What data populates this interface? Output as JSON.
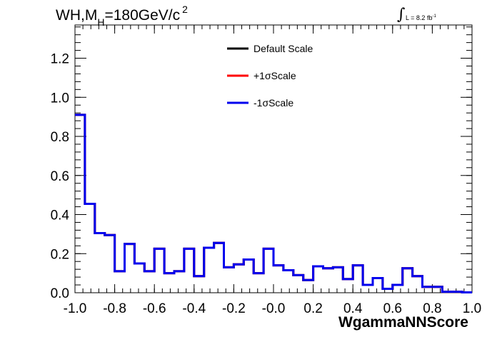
{
  "title": {
    "text_main": "WH,M",
    "text_sub": "H",
    "text_rest": "=180GeV/c",
    "text_sup": "2"
  },
  "lumi": {
    "integral": "∫",
    "text": "L = 8.2 fb",
    "sup": "-1"
  },
  "chart_data": {
    "type": "line",
    "drawstyle": "steps-histogram",
    "xlabel": "WgammaNNScore",
    "ylabel": "",
    "xlim": [
      -1.0,
      1.0
    ],
    "ylim": [
      0.0,
      1.37
    ],
    "xticks": [
      "-1.0",
      "-0.8",
      "-0.6",
      "-0.4",
      "-0.2",
      "-0.0",
      "0.2",
      "0.4",
      "0.6",
      "0.8",
      "1.0"
    ],
    "yticks": [
      "0.0",
      "0.2",
      "0.4",
      "0.6",
      "0.8",
      "1.0",
      "1.2"
    ],
    "bin_edges": [
      -1.0,
      -0.95,
      -0.9,
      -0.85,
      -0.8,
      -0.75,
      -0.7,
      -0.65,
      -0.6,
      -0.55,
      -0.5,
      -0.45,
      -0.4,
      -0.35,
      -0.3,
      -0.25,
      -0.2,
      -0.15,
      -0.1,
      -0.05,
      0.0,
      0.05,
      0.1,
      0.15,
      0.2,
      0.25,
      0.3,
      0.35,
      0.4,
      0.45,
      0.5,
      0.55,
      0.6,
      0.65,
      0.7,
      0.75,
      0.8,
      0.85,
      0.9,
      0.95,
      1.0
    ],
    "legend_position": "top-center",
    "grid": false,
    "series": [
      {
        "name": "Default Scale",
        "color": "#000000",
        "values": [
          0.91,
          0.455,
          0.305,
          0.295,
          0.11,
          0.25,
          0.15,
          0.11,
          0.225,
          0.1,
          0.11,
          0.225,
          0.085,
          0.23,
          0.255,
          0.13,
          0.145,
          0.17,
          0.1,
          0.225,
          0.14,
          0.115,
          0.09,
          0.065,
          0.135,
          0.125,
          0.13,
          0.07,
          0.14,
          0.04,
          0.075,
          0.02,
          0.04,
          0.125,
          0.085,
          0.03,
          0.03,
          0.005,
          0.005,
          0.002
        ]
      },
      {
        "name": "+1σScale",
        "color": "#ff0000",
        "values": [
          0.91,
          0.455,
          0.305,
          0.295,
          0.11,
          0.25,
          0.15,
          0.11,
          0.225,
          0.1,
          0.11,
          0.225,
          0.085,
          0.23,
          0.255,
          0.13,
          0.145,
          0.17,
          0.1,
          0.225,
          0.14,
          0.115,
          0.09,
          0.065,
          0.135,
          0.125,
          0.13,
          0.07,
          0.14,
          0.04,
          0.075,
          0.02,
          0.04,
          0.125,
          0.085,
          0.03,
          0.03,
          0.005,
          0.005,
          0.002
        ]
      },
      {
        "name": "-1σScale",
        "color": "#0000ee",
        "values": [
          0.91,
          0.455,
          0.305,
          0.295,
          0.11,
          0.25,
          0.15,
          0.11,
          0.225,
          0.1,
          0.11,
          0.225,
          0.085,
          0.23,
          0.255,
          0.13,
          0.145,
          0.17,
          0.1,
          0.225,
          0.14,
          0.115,
          0.09,
          0.065,
          0.135,
          0.125,
          0.13,
          0.07,
          0.14,
          0.04,
          0.075,
          0.02,
          0.04,
          0.125,
          0.085,
          0.03,
          0.03,
          0.005,
          0.005,
          0.002
        ]
      }
    ]
  }
}
